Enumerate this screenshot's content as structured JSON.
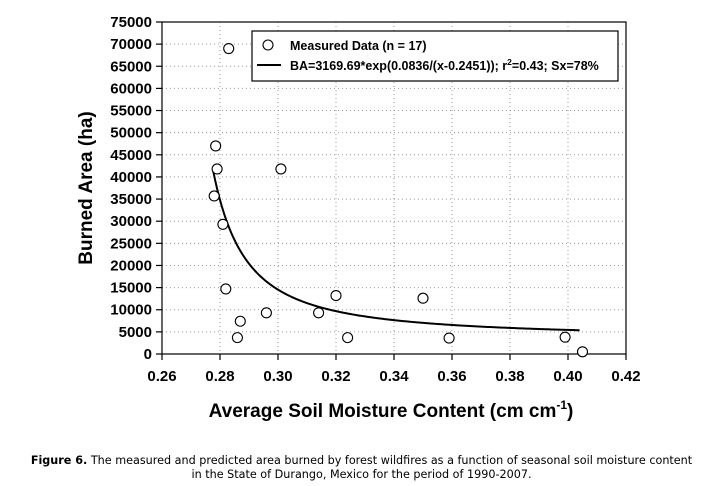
{
  "chart_data": {
    "type": "scatter",
    "xlabel": "Average Soil Moisture Content (cm cm",
    "xlabel_sup": "-1",
    "xlabel_end": ")",
    "ylabel": "Burned Area (ha)",
    "xlim": [
      0.26,
      0.42
    ],
    "ylim": [
      0,
      75000
    ],
    "x_ticks": [
      "0.26",
      "0.28",
      "0.30",
      "0.32",
      "0.34",
      "0.36",
      "0.38",
      "0.40",
      "0.42"
    ],
    "y_ticks": [
      "0",
      "5000",
      "10000",
      "15000",
      "20000",
      "25000",
      "30000",
      "35000",
      "40000",
      "45000",
      "50000",
      "55000",
      "60000",
      "65000",
      "70000",
      "75000"
    ],
    "grid": "dotted",
    "legend": {
      "position": "top-right",
      "measured_label": "Measured Data (n = 17)",
      "fit_label_1": "BA=3169.69*exp(0.0836/(x-0.2451)); r",
      "fit_label_sup": "2",
      "fit_label_2": "=0.43; Sx=78%"
    },
    "series": [
      {
        "name": "Measured Data (n = 17)",
        "kind": "points",
        "points": [
          {
            "x": 0.283,
            "y": 69000
          },
          {
            "x": 0.2785,
            "y": 47000
          },
          {
            "x": 0.279,
            "y": 41800
          },
          {
            "x": 0.301,
            "y": 41800
          },
          {
            "x": 0.278,
            "y": 35700
          },
          {
            "x": 0.281,
            "y": 29300
          },
          {
            "x": 0.282,
            "y": 14700
          },
          {
            "x": 0.32,
            "y": 13200
          },
          {
            "x": 0.35,
            "y": 12600
          },
          {
            "x": 0.296,
            "y": 9300
          },
          {
            "x": 0.314,
            "y": 9300
          },
          {
            "x": 0.287,
            "y": 7400
          },
          {
            "x": 0.286,
            "y": 3700
          },
          {
            "x": 0.324,
            "y": 3700
          },
          {
            "x": 0.359,
            "y": 3600
          },
          {
            "x": 0.399,
            "y": 3800
          },
          {
            "x": 0.405,
            "y": 500
          }
        ]
      },
      {
        "name": "BA=3169.69*exp(0.0836/(x-0.2451)); r2=0.43; Sx=78%",
        "kind": "fit",
        "a": 3169.69,
        "b": 0.0836,
        "c": 0.2451,
        "x_from": 0.2775,
        "x_to": 0.404
      }
    ]
  },
  "caption": {
    "label": "Figure 6.",
    "line1": " The measured and predicted area burned by forest wildfires as a function of seasonal soil moisture content",
    "line2": "in the State of Durango, Mexico for the period of 1990-2007."
  }
}
